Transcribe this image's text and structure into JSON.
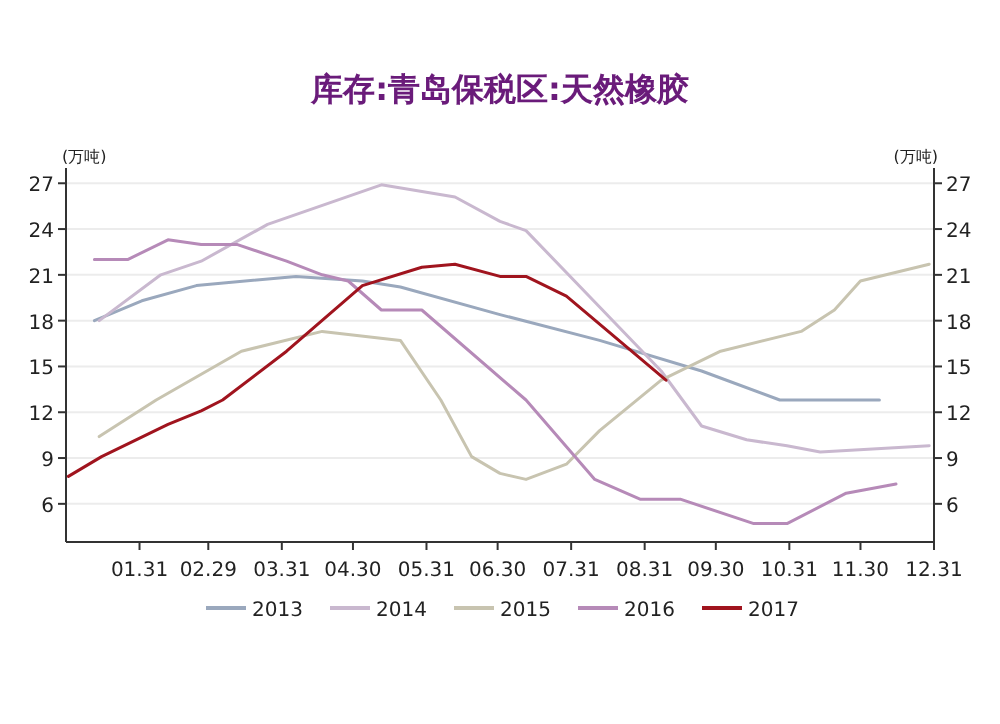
{
  "chart_data": {
    "type": "line",
    "title": "库存:青岛保税区:天然橡胶",
    "ylabel": "(万吨)",
    "y2label": "(万吨)",
    "xlim": [
      "--01-01",
      "--12-31"
    ],
    "xticks": [
      {
        "value": "--01-31",
        "label": "01.31"
      },
      {
        "value": "--02-29",
        "label": "02.29"
      },
      {
        "value": "--03-31",
        "label": "03.31"
      },
      {
        "value": "--04-30",
        "label": "04.30"
      },
      {
        "value": "--05-31",
        "label": "05.31"
      },
      {
        "value": "--06-30",
        "label": "06.30"
      },
      {
        "value": "--07-31",
        "label": "07.31"
      },
      {
        "value": "--08-31",
        "label": "08.31"
      },
      {
        "value": "--09-30",
        "label": "09.30"
      },
      {
        "value": "--10-31",
        "label": "10.31"
      },
      {
        "value": "--11-30",
        "label": "11.30"
      },
      {
        "value": "--12-31",
        "label": "12.31"
      }
    ],
    "ylim": [
      3.5,
      28
    ],
    "yticks": [
      6,
      9,
      12,
      15,
      18,
      21,
      24,
      27
    ],
    "y2lim": [
      3.5,
      28
    ],
    "y2ticks": [
      6,
      9,
      12,
      15,
      18,
      21,
      24,
      27
    ],
    "grid": "y",
    "legend": "bottom",
    "marker": "none",
    "line_style": "solid",
    "series": [
      {
        "name": "2013",
        "color": "#9aa8bd",
        "x": [
          "--01-12",
          "--02-01",
          "--02-24",
          "--04-06",
          "--05-04",
          "--05-20",
          "--07-01",
          "--08-12",
          "--09-24",
          "--10-27",
          "--12-08"
        ],
        "values": [
          18.0,
          19.3,
          20.3,
          20.9,
          20.6,
          20.2,
          18.4,
          16.7,
          14.7,
          12.8,
          12.8
        ]
      },
      {
        "name": "2014",
        "color": "#c9b8cf",
        "x": [
          "--01-14",
          "--02-09",
          "--02-26",
          "--03-25",
          "--05-12",
          "--06-12",
          "--07-01",
          "--07-12",
          "--08-12",
          "--09-07",
          "--09-24",
          "--10-13",
          "--10-30",
          "--11-13",
          "--12-29"
        ],
        "values": [
          18.0,
          21.0,
          21.9,
          24.3,
          26.9,
          26.1,
          24.5,
          23.9,
          18.9,
          14.7,
          11.1,
          10.2,
          9.8,
          9.4,
          9.8
        ]
      },
      {
        "name": "2015",
        "color": "#c8c4b0",
        "x": [
          "--01-14",
          "--02-07",
          "--03-14",
          "--04-17",
          "--05-20",
          "--06-06",
          "--06-19",
          "--07-01",
          "--07-12",
          "--07-29",
          "--08-12",
          "--09-07",
          "--10-02",
          "--11-05",
          "--11-19",
          "--11-30",
          "--12-29"
        ],
        "values": [
          10.4,
          12.8,
          16.0,
          17.3,
          16.7,
          12.8,
          9.1,
          8.0,
          7.6,
          8.6,
          10.8,
          14.1,
          16.0,
          17.3,
          18.7,
          20.6,
          21.7
        ]
      },
      {
        "name": "2016",
        "color": "#b68ab8",
        "x": [
          "--01-12",
          "--01-26",
          "--02-12",
          "--02-26",
          "--03-12",
          "--04-02",
          "--04-17",
          "--04-28",
          "--05-12",
          "--05-29",
          "--07-12",
          "--08-10",
          "--08-29",
          "--09-15",
          "--10-16",
          "--10-30",
          "--11-24",
          "--12-15"
        ],
        "values": [
          22.0,
          22.0,
          23.3,
          23.0,
          23.0,
          21.9,
          21.0,
          20.6,
          18.7,
          18.7,
          12.8,
          7.6,
          6.3,
          6.3,
          4.7,
          4.7,
          6.7,
          7.3
        ]
      },
      {
        "name": "2017",
        "color": "#a0141e",
        "x": [
          "--01-01",
          "--01-15",
          "--02-12",
          "--02-26",
          "--03-06",
          "--04-02",
          "--05-04",
          "--05-29",
          "--06-12",
          "--07-01",
          "--07-12",
          "--07-29",
          "--09-09"
        ],
        "values": [
          7.8,
          9.1,
          11.2,
          12.1,
          12.8,
          16.0,
          20.3,
          21.5,
          21.7,
          20.9,
          20.9,
          19.6,
          14.1
        ]
      }
    ]
  }
}
